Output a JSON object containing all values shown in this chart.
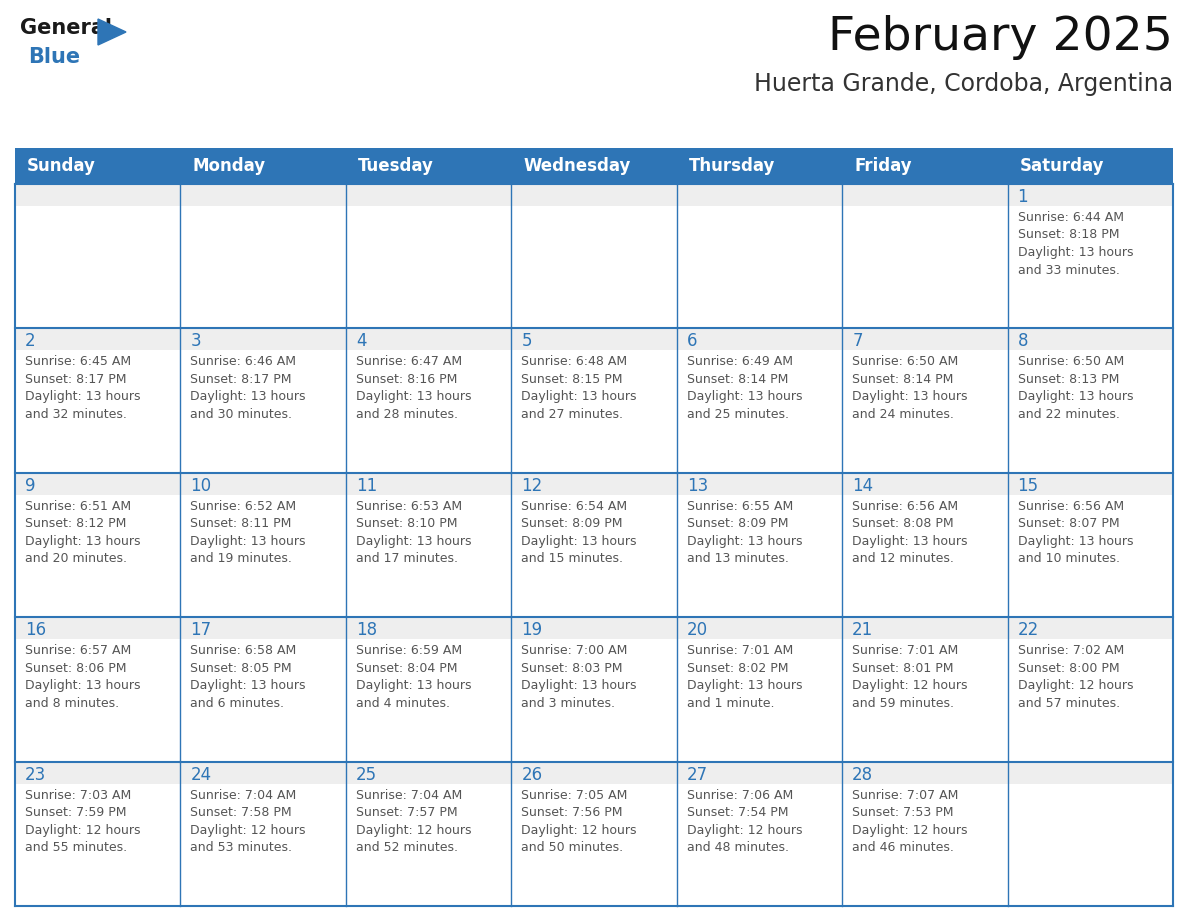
{
  "title": "February 2025",
  "subtitle": "Huerta Grande, Cordoba, Argentina",
  "header_bg": "#2E75B6",
  "header_text_color": "#FFFFFF",
  "cell_border_color": "#2E75B6",
  "day_number_color": "#2E75B6",
  "info_text_color": "#555555",
  "cell_top_bg": "#EEEEEE",
  "background_color": "#FFFFFF",
  "days_of_week": [
    "Sunday",
    "Monday",
    "Tuesday",
    "Wednesday",
    "Thursday",
    "Friday",
    "Saturday"
  ],
  "weeks": [
    [
      {
        "day": "",
        "info": ""
      },
      {
        "day": "",
        "info": ""
      },
      {
        "day": "",
        "info": ""
      },
      {
        "day": "",
        "info": ""
      },
      {
        "day": "",
        "info": ""
      },
      {
        "day": "",
        "info": ""
      },
      {
        "day": "1",
        "info": "Sunrise: 6:44 AM\nSunset: 8:18 PM\nDaylight: 13 hours\nand 33 minutes."
      }
    ],
    [
      {
        "day": "2",
        "info": "Sunrise: 6:45 AM\nSunset: 8:17 PM\nDaylight: 13 hours\nand 32 minutes."
      },
      {
        "day": "3",
        "info": "Sunrise: 6:46 AM\nSunset: 8:17 PM\nDaylight: 13 hours\nand 30 minutes."
      },
      {
        "day": "4",
        "info": "Sunrise: 6:47 AM\nSunset: 8:16 PM\nDaylight: 13 hours\nand 28 minutes."
      },
      {
        "day": "5",
        "info": "Sunrise: 6:48 AM\nSunset: 8:15 PM\nDaylight: 13 hours\nand 27 minutes."
      },
      {
        "day": "6",
        "info": "Sunrise: 6:49 AM\nSunset: 8:14 PM\nDaylight: 13 hours\nand 25 minutes."
      },
      {
        "day": "7",
        "info": "Sunrise: 6:50 AM\nSunset: 8:14 PM\nDaylight: 13 hours\nand 24 minutes."
      },
      {
        "day": "8",
        "info": "Sunrise: 6:50 AM\nSunset: 8:13 PM\nDaylight: 13 hours\nand 22 minutes."
      }
    ],
    [
      {
        "day": "9",
        "info": "Sunrise: 6:51 AM\nSunset: 8:12 PM\nDaylight: 13 hours\nand 20 minutes."
      },
      {
        "day": "10",
        "info": "Sunrise: 6:52 AM\nSunset: 8:11 PM\nDaylight: 13 hours\nand 19 minutes."
      },
      {
        "day": "11",
        "info": "Sunrise: 6:53 AM\nSunset: 8:10 PM\nDaylight: 13 hours\nand 17 minutes."
      },
      {
        "day": "12",
        "info": "Sunrise: 6:54 AM\nSunset: 8:09 PM\nDaylight: 13 hours\nand 15 minutes."
      },
      {
        "day": "13",
        "info": "Sunrise: 6:55 AM\nSunset: 8:09 PM\nDaylight: 13 hours\nand 13 minutes."
      },
      {
        "day": "14",
        "info": "Sunrise: 6:56 AM\nSunset: 8:08 PM\nDaylight: 13 hours\nand 12 minutes."
      },
      {
        "day": "15",
        "info": "Sunrise: 6:56 AM\nSunset: 8:07 PM\nDaylight: 13 hours\nand 10 minutes."
      }
    ],
    [
      {
        "day": "16",
        "info": "Sunrise: 6:57 AM\nSunset: 8:06 PM\nDaylight: 13 hours\nand 8 minutes."
      },
      {
        "day": "17",
        "info": "Sunrise: 6:58 AM\nSunset: 8:05 PM\nDaylight: 13 hours\nand 6 minutes."
      },
      {
        "day": "18",
        "info": "Sunrise: 6:59 AM\nSunset: 8:04 PM\nDaylight: 13 hours\nand 4 minutes."
      },
      {
        "day": "19",
        "info": "Sunrise: 7:00 AM\nSunset: 8:03 PM\nDaylight: 13 hours\nand 3 minutes."
      },
      {
        "day": "20",
        "info": "Sunrise: 7:01 AM\nSunset: 8:02 PM\nDaylight: 13 hours\nand 1 minute."
      },
      {
        "day": "21",
        "info": "Sunrise: 7:01 AM\nSunset: 8:01 PM\nDaylight: 12 hours\nand 59 minutes."
      },
      {
        "day": "22",
        "info": "Sunrise: 7:02 AM\nSunset: 8:00 PM\nDaylight: 12 hours\nand 57 minutes."
      }
    ],
    [
      {
        "day": "23",
        "info": "Sunrise: 7:03 AM\nSunset: 7:59 PM\nDaylight: 12 hours\nand 55 minutes."
      },
      {
        "day": "24",
        "info": "Sunrise: 7:04 AM\nSunset: 7:58 PM\nDaylight: 12 hours\nand 53 minutes."
      },
      {
        "day": "25",
        "info": "Sunrise: 7:04 AM\nSunset: 7:57 PM\nDaylight: 12 hours\nand 52 minutes."
      },
      {
        "day": "26",
        "info": "Sunrise: 7:05 AM\nSunset: 7:56 PM\nDaylight: 12 hours\nand 50 minutes."
      },
      {
        "day": "27",
        "info": "Sunrise: 7:06 AM\nSunset: 7:54 PM\nDaylight: 12 hours\nand 48 minutes."
      },
      {
        "day": "28",
        "info": "Sunrise: 7:07 AM\nSunset: 7:53 PM\nDaylight: 12 hours\nand 46 minutes."
      },
      {
        "day": "",
        "info": ""
      }
    ]
  ],
  "logo_general_color": "#1a1a1a",
  "logo_blue_color": "#2E75B6",
  "title_fontsize": 34,
  "subtitle_fontsize": 17,
  "header_fontsize": 12,
  "day_num_fontsize": 12,
  "info_fontsize": 9.0
}
